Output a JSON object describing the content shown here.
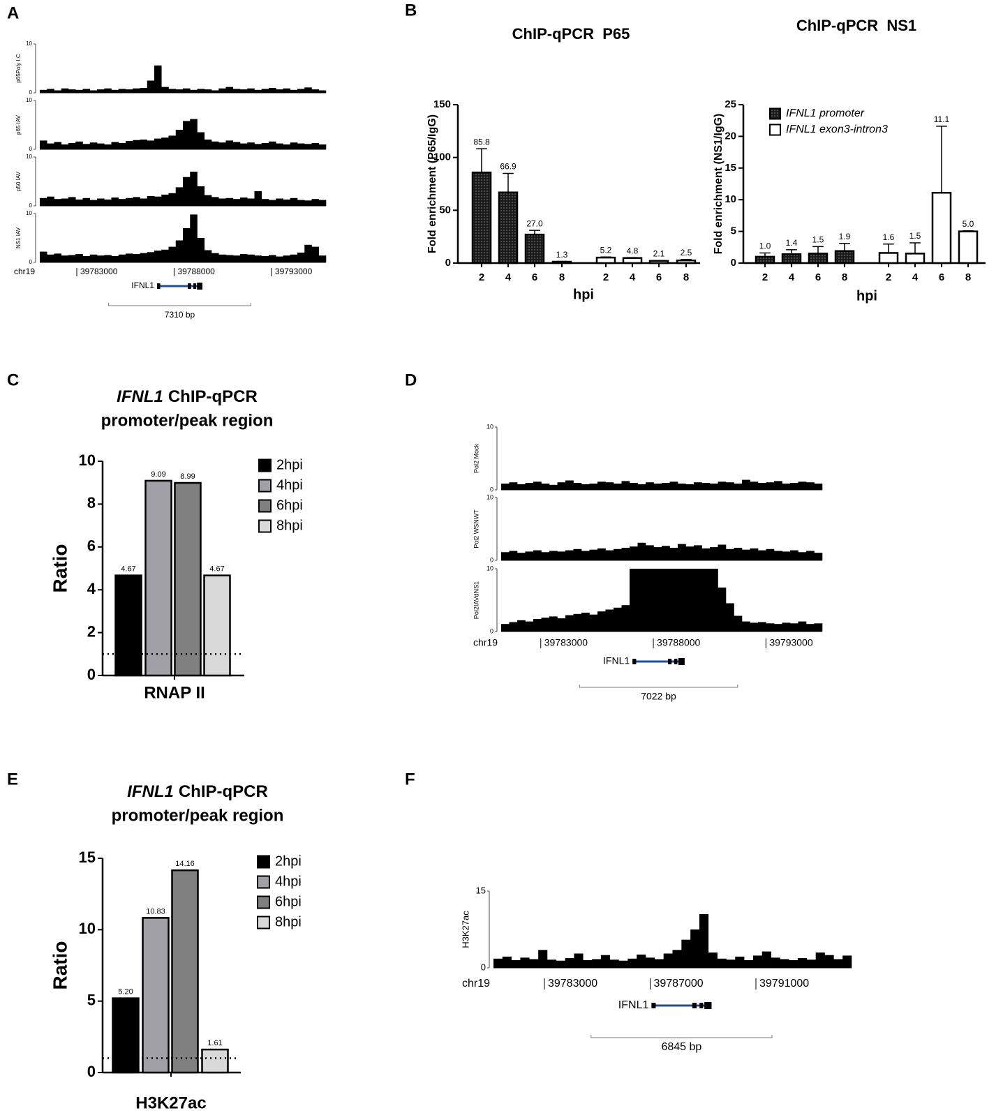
{
  "chart_data": [
    {
      "type": "track",
      "panel": "A",
      "chrom": "chr19",
      "xlim": [
        39781100,
        39795800
      ],
      "xticks": [
        39783000,
        39788000,
        39793000
      ],
      "gene": {
        "name": "IFNL1",
        "start": 39787123,
        "end": 39789454
      },
      "scale": {
        "value": 7310,
        "label": "7310 bp"
      },
      "tracks": [
        {
          "name": "p65Poly I:C",
          "ylim": [
            0,
            10
          ],
          "yticks": [
            0,
            10
          ],
          "values": [
            0.6,
            0.8,
            0.5,
            0.9,
            0.7,
            0.6,
            0.8,
            0.5,
            0.7,
            0.9,
            0.6,
            0.8,
            0.7,
            0.9,
            1.0,
            2.5,
            5.6,
            1.2,
            0.8,
            0.7,
            0.9,
            0.6,
            0.8,
            0.7,
            0.5,
            0.9,
            1.2,
            0.8,
            0.7,
            0.9,
            0.6,
            0.8,
            1.0,
            0.7,
            0.9,
            0.6,
            0.8,
            1.1,
            0.7,
            0.5
          ]
        },
        {
          "name": "p65 IAV",
          "ylim": [
            0,
            10
          ],
          "yticks": [
            0,
            10
          ],
          "values": [
            1.8,
            1.2,
            1.5,
            1.0,
            1.3,
            1.6,
            1.1,
            1.4,
            1.2,
            1.0,
            1.5,
            1.3,
            1.7,
            1.9,
            2.0,
            1.8,
            2.2,
            2.4,
            2.8,
            4.0,
            5.8,
            6.2,
            3.5,
            2.0,
            1.6,
            1.4,
            1.8,
            1.5,
            1.2,
            1.4,
            1.1,
            1.3,
            1.6,
            1.2,
            1.0,
            1.4,
            1.2,
            1.1,
            1.3,
            1.0
          ]
        },
        {
          "name": "p50 IAV",
          "ylim": [
            0,
            10
          ],
          "yticks": [
            0,
            10
          ],
          "values": [
            1.6,
            1.9,
            1.4,
            1.5,
            1.8,
            1.3,
            1.6,
            1.2,
            1.5,
            1.3,
            1.7,
            1.4,
            1.6,
            1.8,
            1.5,
            2.0,
            1.9,
            2.3,
            2.6,
            3.8,
            5.9,
            7.0,
            4.0,
            2.2,
            1.8,
            1.5,
            1.6,
            1.4,
            1.7,
            1.5,
            3.0,
            1.4,
            1.2,
            1.5,
            1.3,
            1.6,
            1.2,
            1.1,
            1.4,
            1.2
          ]
        },
        {
          "name": "NS1 IAV",
          "ylim": [
            0,
            10
          ],
          "yticks": [
            0,
            10
          ],
          "values": [
            2.2,
            1.6,
            1.8,
            1.4,
            1.5,
            1.7,
            1.3,
            1.6,
            1.4,
            1.5,
            1.3,
            1.6,
            1.8,
            1.7,
            1.9,
            2.1,
            2.4,
            2.6,
            3.2,
            4.5,
            7.0,
            9.8,
            5.0,
            2.5,
            1.9,
            1.6,
            1.5,
            1.4,
            1.7,
            1.6,
            1.4,
            1.3,
            1.5,
            1.2,
            1.4,
            1.6,
            2.0,
            3.6,
            3.2,
            1.4
          ]
        }
      ]
    },
    {
      "type": "bar",
      "panel": "B",
      "title": "ChIP-qPCR  P65",
      "ylabel": "Fold enrichment (P65/IgG)",
      "xlabel": "hpi",
      "categories": [
        "2",
        "4",
        "6",
        "8",
        "2",
        "4",
        "6",
        "8"
      ],
      "ylim": [
        0,
        150
      ],
      "yticks": [
        0,
        50,
        100,
        150
      ],
      "series": [
        {
          "color": "#1a1a1a",
          "pattern": "dots",
          "values": [
            85.8,
            66.9,
            27.0,
            1.3,
            null,
            null,
            null,
            null
          ],
          "errors": [
            22.5,
            18,
            4,
            0.3,
            null,
            null,
            null,
            null
          ],
          "value_labels": [
            "85.8",
            "66.9",
            "27.0",
            "1.3",
            null,
            null,
            null,
            null
          ]
        },
        {
          "color": "#ffffff",
          "values": [
            null,
            null,
            null,
            null,
            5.2,
            4.8,
            2.1,
            2.5
          ],
          "errors": [
            null,
            null,
            null,
            null,
            0.6,
            0.4,
            0.3,
            1.0
          ],
          "value_labels": [
            null,
            null,
            null,
            null,
            "5.2",
            "4.8",
            "2.1",
            "2.5"
          ]
        }
      ]
    },
    {
      "type": "bar",
      "title": "ChIP-qPCR  NS1",
      "ylabel": "Fold enrichment (NS1/IgG)",
      "xlabel": "hpi",
      "categories": [
        "2",
        "4",
        "6",
        "8",
        "2",
        "4",
        "6",
        "8"
      ],
      "ylim": [
        0,
        25
      ],
      "yticks": [
        0,
        5,
        10,
        15,
        20,
        25
      ],
      "series": [
        {
          "name": "IFNL1 promoter",
          "color": "#1a1a1a",
          "pattern": "dots",
          "values": [
            1.0,
            1.4,
            1.5,
            1.9,
            null,
            null,
            null,
            null
          ],
          "errors": [
            0.6,
            0.7,
            1.1,
            1.2,
            null,
            null,
            null,
            null
          ],
          "value_labels": [
            "1.0",
            "1.4",
            "1.5",
            "1.9",
            null,
            null,
            null,
            null
          ]
        },
        {
          "name": "IFNL1 exon3-intron3",
          "color": "#ffffff",
          "values": [
            null,
            null,
            null,
            null,
            1.6,
            1.5,
            11.1,
            5.0
          ],
          "errors": [
            null,
            null,
            null,
            null,
            1.4,
            1.7,
            10.5,
            0.1
          ],
          "value_labels": [
            null,
            null,
            null,
            null,
            "1.6",
            "1.5",
            "11.1",
            "5.0"
          ]
        }
      ]
    },
    {
      "type": "bar",
      "panel": "C",
      "title_gene": "IFNL1",
      "title": "ChIP-qPCR",
      "subtitle": "promoter/peak region",
      "ylabel": "Ratio",
      "categories": [
        "RNAP II"
      ],
      "ylim": [
        0,
        10
      ],
      "yticks": [
        0,
        2,
        4,
        6,
        8,
        10
      ],
      "refline": 1,
      "series": [
        {
          "name": "2hpi",
          "color": "#000000",
          "values": [
            4.67
          ]
        },
        {
          "name": "4hpi",
          "color": "#a0a0a6",
          "values": [
            9.09
          ]
        },
        {
          "name": "6hpi",
          "color": "#808080",
          "values": [
            8.99
          ]
        },
        {
          "name": "8hpi",
          "color": "#d9d9d9",
          "values": [
            4.67
          ]
        }
      ]
    },
    {
      "type": "track",
      "panel": "D",
      "chrom": "chr19",
      "xlim": [
        39781241,
        39795500
      ],
      "xticks": [
        39783000,
        39788000,
        39793000
      ],
      "gene": {
        "name": "IFNL1",
        "start": 39787074,
        "end": 39789389
      },
      "scale": {
        "value": 7022,
        "label": "7022 bp"
      },
      "tracks": [
        {
          "name": "Pol2 Mock",
          "ylim": [
            0,
            10
          ],
          "yticks": [
            0,
            10
          ],
          "values": [
            1.0,
            1.2,
            0.9,
            1.1,
            1.3,
            1.0,
            0.8,
            1.2,
            1.5,
            1.1,
            0.9,
            1.0,
            1.3,
            1.2,
            1.0,
            1.4,
            1.1,
            0.9,
            1.2,
            1.0,
            1.1,
            1.3,
            1.0,
            0.9,
            1.2,
            1.1,
            1.0,
            1.3,
            1.2,
            1.0,
            1.6,
            1.3,
            1.1,
            1.2,
            1.4,
            1.0,
            1.1,
            1.3,
            1.2,
            1.0
          ]
        },
        {
          "name": "Pol2 WSNWT",
          "ylim": [
            0,
            10
          ],
          "yticks": [
            0,
            10
          ],
          "values": [
            1.3,
            1.5,
            1.2,
            1.4,
            1.6,
            1.3,
            1.5,
            1.4,
            1.6,
            1.8,
            1.5,
            1.7,
            1.9,
            1.6,
            1.8,
            2.0,
            2.2,
            2.8,
            2.4,
            2.1,
            2.3,
            2.0,
            2.6,
            2.2,
            2.4,
            1.9,
            2.1,
            2.5,
            1.8,
            2.0,
            1.7,
            1.9,
            1.6,
            1.8,
            1.5,
            1.4,
            1.6,
            1.3,
            1.5,
            1.2
          ]
        },
        {
          "name": "Pol2IAVdNS1",
          "ylim": [
            0,
            10
          ],
          "yticks": [
            0,
            10
          ],
          "values": [
            1.2,
            1.5,
            1.8,
            1.6,
            2.0,
            2.2,
            2.4,
            2.1,
            2.6,
            2.8,
            3.0,
            2.7,
            3.2,
            3.5,
            3.8,
            4.2,
            10,
            10,
            10,
            10,
            10,
            10,
            10,
            10,
            10,
            10,
            10,
            7.0,
            4.5,
            2.5,
            1.6,
            1.4,
            1.5,
            1.3,
            1.2,
            1.4,
            1.3,
            1.6,
            1.2,
            1.3
          ]
        }
      ]
    },
    {
      "type": "bar",
      "panel": "E",
      "title_gene": "IFNL1",
      "title": "ChIP-qPCR",
      "subtitle": "promoter/peak region",
      "ylabel": "Ratio",
      "categories": [
        "H3K27ac"
      ],
      "ylim": [
        0,
        15
      ],
      "yticks": [
        0,
        5,
        10,
        15
      ],
      "refline": 1,
      "series": [
        {
          "name": "2hpi",
          "color": "#000000",
          "values": [
            5.2
          ],
          "value_labels": [
            "5.20"
          ]
        },
        {
          "name": "4hpi",
          "color": "#a0a0a6",
          "values": [
            10.83
          ]
        },
        {
          "name": "6hpi",
          "color": "#808080",
          "values": [
            14.16
          ]
        },
        {
          "name": "8hpi",
          "color": "#d9d9d9",
          "values": [
            1.61
          ]
        }
      ]
    },
    {
      "type": "track",
      "panel": "F",
      "chrom": "chr19",
      "xlim": [
        39781073,
        39794617
      ],
      "xticks": [
        39783000,
        39787000,
        39791000
      ],
      "gene": {
        "name": "IFNL1",
        "start": 39787050,
        "end": 39789322
      },
      "scale": {
        "value": 6845,
        "label": "6845 bp"
      },
      "tracks": [
        {
          "name": "H3K27ac",
          "ylim": [
            0,
            15
          ],
          "yticks": [
            0,
            15
          ],
          "values": [
            1.8,
            2.2,
            1.5,
            2.0,
            1.7,
            3.5,
            1.6,
            1.4,
            1.9,
            2.8,
            1.5,
            1.7,
            2.5,
            1.6,
            1.4,
            1.8,
            2.6,
            2.0,
            1.7,
            2.8,
            3.5,
            5.5,
            7.5,
            10.5,
            3.0,
            1.8,
            1.6,
            2.2,
            1.5,
            2.4,
            3.2,
            2.0,
            1.7,
            1.5,
            1.9,
            1.6,
            3.0,
            2.5,
            1.7,
            2.4
          ]
        }
      ]
    }
  ]
}
